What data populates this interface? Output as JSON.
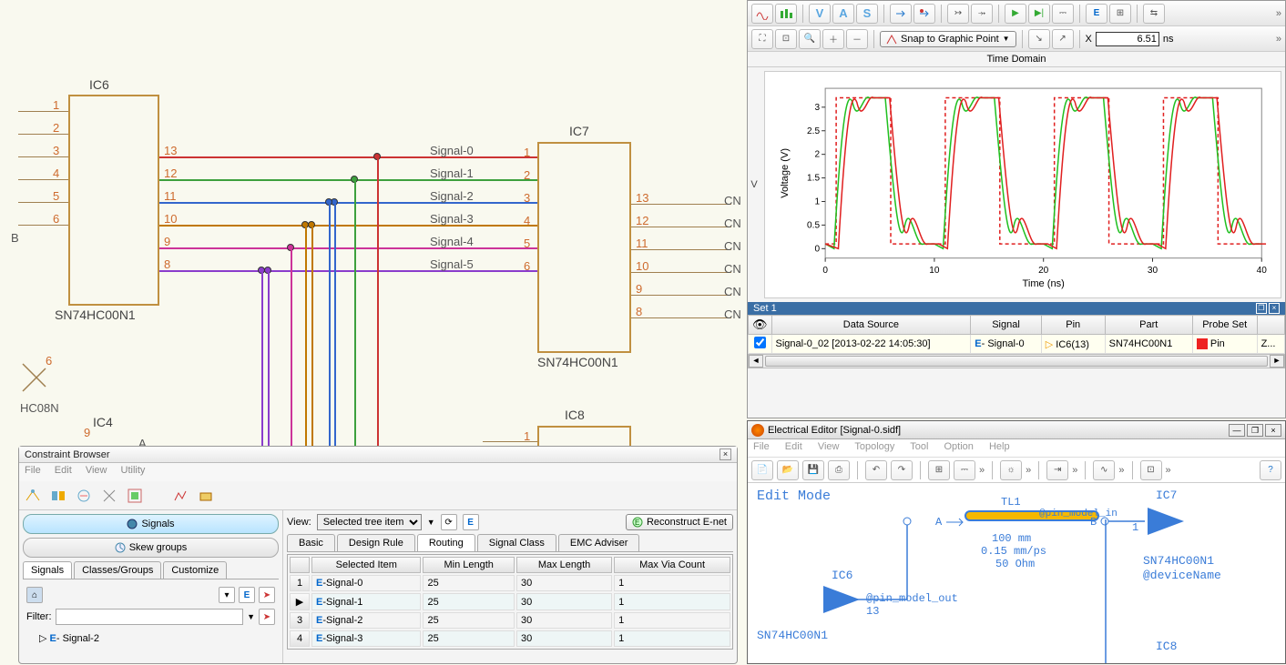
{
  "schematic": {
    "ic6": {
      "label": "IC6",
      "part": "SN74HC00N1",
      "left_pins": [
        1,
        2,
        3,
        4,
        5,
        6
      ],
      "right_pins": [
        13,
        12,
        11,
        10,
        9,
        8
      ]
    },
    "ic7": {
      "label": "IC7",
      "part": "SN74HC00N1",
      "left_pins": [
        1,
        2,
        3,
        4,
        5,
        6
      ],
      "right_pins": [
        13,
        12,
        11,
        10,
        9,
        8
      ]
    },
    "ic8": {
      "label": "IC8"
    },
    "ic4": {
      "label": "IC4"
    },
    "hc08n": "HC08N",
    "signals": [
      "Signal-0",
      "Signal-1",
      "Signal-2",
      "Signal-3",
      "Signal-4",
      "Signal-5"
    ],
    "b_label": "B",
    "pin6_label": "6",
    "pin9_label": "9",
    "pinA_label": "A",
    "cn_labels": [
      "CN",
      "CN",
      "CN",
      "CN",
      "CN",
      "CN"
    ],
    "wire_colors": [
      "#cc3333",
      "#3da03d",
      "#3366cc",
      "#c07800",
      "#cc3399",
      "#8a3dcc"
    ]
  },
  "constraint_browser": {
    "title": "Constraint Browser",
    "menu": [
      "File",
      "Edit",
      "View",
      "Utility"
    ],
    "signals_btn": "Signals",
    "skew_btn": "Skew groups",
    "left_tabs": [
      "Signals",
      "Classes/Groups",
      "Customize"
    ],
    "filter_label": "Filter:",
    "tree_item": "Signal-2",
    "view_label": "View:",
    "view_value": "Selected tree item",
    "reconstruct_btn": "Reconstruct E-net",
    "right_tabs": [
      "Basic",
      "Design Rule",
      "Routing",
      "Signal Class",
      "EMC Adviser"
    ],
    "active_right_tab": "Routing",
    "grid_headers": [
      "",
      "Selected Item",
      "Min Length",
      "Max Length",
      "Max Via Count"
    ],
    "grid_rows": [
      [
        "1",
        "Signal-0",
        "25",
        "30",
        "1"
      ],
      [
        "▶",
        "Signal-1",
        "25",
        "30",
        "1"
      ],
      [
        "3",
        "Signal-2",
        "25",
        "30",
        "1"
      ],
      [
        "4",
        "Signal-3",
        "25",
        "30",
        "1"
      ]
    ]
  },
  "waveform": {
    "tb1_letters": [
      "V",
      "A",
      "S"
    ],
    "snap_label": "Snap to Graphic Point",
    "x_label": "X",
    "x_value": "6.51",
    "x_unit": "ns",
    "td_title": "Time Domain",
    "v_label": "V",
    "chart": {
      "ylabel": "Voltage (V)",
      "xlabel": "Time (ns)",
      "xticks": [
        0,
        10,
        20,
        30,
        40
      ],
      "yticks": [
        0,
        0.5,
        1,
        1.5,
        2,
        2.5,
        3
      ],
      "xlim": [
        0,
        40
      ],
      "ylim": [
        -0.2,
        3.4
      ],
      "colors": {
        "red": "#e02020",
        "green": "#20c020",
        "dashed": "#e02020"
      },
      "period": 10,
      "high": 3.2,
      "low": 0.1
    },
    "set_title": "Set 1",
    "set_headers": [
      "",
      "Data Source",
      "Signal",
      "Pin",
      "Part",
      "Probe Set",
      ""
    ],
    "set_row": {
      "ds": "Signal-0_02 [2013-02-22 14:05:30]",
      "sig": "Signal-0",
      "pin": "IC6(13)",
      "part": "SN74HC00N1",
      "probe": "Pin",
      "last": "Z..."
    }
  },
  "electrical_editor": {
    "title": "Electrical Editor [Signal-0.sidf]",
    "menu": [
      "File",
      "Edit",
      "View",
      "Topology",
      "Tool",
      "Option",
      "Help"
    ],
    "edit_mode": "Edit Mode",
    "ic6": "IC6",
    "ic7": "IC7",
    "ic8": "IC8",
    "pin_out": "@pin_model_out",
    "pin_in": "@pin_model_in",
    "pin13": "13",
    "pin1": "1",
    "tl1": "TL1",
    "tl_len": "100 mm",
    "tl_speed": "0.15 mm/ps",
    "tl_z": "50 Ohm",
    "part": "SN74HC00N1",
    "devname": "@deviceName",
    "a": "A",
    "b": "B"
  }
}
